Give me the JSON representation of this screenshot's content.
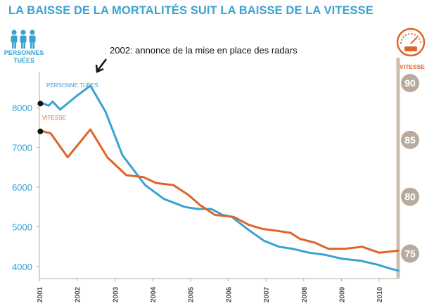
{
  "chart_data": {
    "type": "line",
    "title": "LA BAISSE DE LA MORTALITÉS SUIT LA BAISSE DE LA VITESSE",
    "left_axis": {
      "label": "PERSONNES\nTUÉES",
      "ylim": [
        3700,
        8900
      ],
      "ticks": [
        4000,
        5000,
        6000,
        7000,
        8000
      ],
      "icon": "three-people-icon",
      "color": "#3aa2cf"
    },
    "right_axis": {
      "label": "VITESSE",
      "ylim": [
        72.8,
        91.0
      ],
      "ticks": [
        75,
        80,
        85,
        90
      ],
      "icon": "speedometer-icon",
      "color": "#e0642a",
      "badge_color": "#b7ab9d"
    },
    "x_axis": {
      "xlim": [
        2001,
        2010.5
      ],
      "ticks": [
        2001,
        2002,
        2003,
        2004,
        2005,
        2006,
        2007,
        2008,
        2009,
        2010
      ]
    },
    "annotation": "2002: annonce de la mise en place des radars",
    "series": [
      {
        "name": "PERSONNE TUÉES",
        "axis": "left",
        "color": "#3aa2cf",
        "x": [
          2001.1,
          2001.25,
          2001.35,
          2001.55,
          2002.0,
          2002.35,
          2002.75,
          2003.2,
          2003.8,
          2004.3,
          2004.85,
          2005.2,
          2005.55,
          2005.85,
          2006.1,
          2006.5,
          2006.95,
          2007.35,
          2007.7,
          2008.15,
          2008.55,
          2009.0,
          2009.5,
          2009.95,
          2010.3,
          2010.5
        ],
        "y": [
          8100,
          8050,
          8150,
          7950,
          8300,
          8550,
          7900,
          6800,
          6050,
          5700,
          5500,
          5450,
          5450,
          5300,
          5250,
          4950,
          4650,
          4500,
          4450,
          4350,
          4300,
          4200,
          4150,
          4050,
          3950,
          3900
        ]
      },
      {
        "name": "VITESSE",
        "axis": "left",
        "color": "#e0642a",
        "x": [
          2001.1,
          2001.3,
          2001.75,
          2002.35,
          2002.8,
          2003.3,
          2003.75,
          2004.1,
          2004.55,
          2004.95,
          2005.25,
          2005.65,
          2006.15,
          2006.55,
          2006.9,
          2007.3,
          2007.65,
          2007.9,
          2008.3,
          2008.65,
          2009.1,
          2009.55,
          2010.0,
          2010.5
        ],
        "y": [
          7400,
          7350,
          6750,
          7450,
          6750,
          6300,
          6250,
          6100,
          6050,
          5800,
          5550,
          5300,
          5250,
          5050,
          4950,
          4900,
          4850,
          4700,
          4600,
          4450,
          4450,
          4500,
          4350,
          4400
        ]
      }
    ]
  }
}
